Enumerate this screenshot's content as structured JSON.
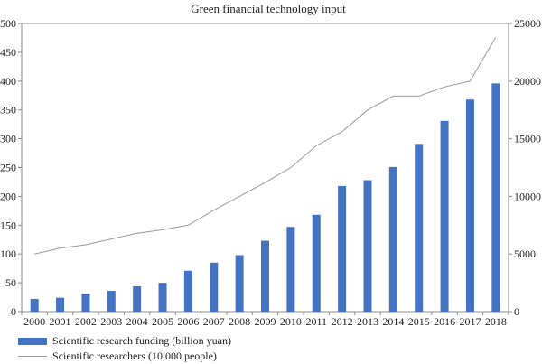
{
  "chart_data": {
    "type": "bar",
    "title": "Green financial technology input",
    "categories": [
      "2000",
      "2001",
      "2002",
      "2003",
      "2004",
      "2005",
      "2006",
      "2007",
      "2008",
      "2009",
      "2010",
      "2011",
      "2012",
      "2013",
      "2014",
      "2015",
      "2016",
      "2017",
      "2018"
    ],
    "series": [
      {
        "name": "Scientific research funding (billion yuan)",
        "type": "bar",
        "axis": "left",
        "color": "#4472c4",
        "values": [
          22,
          24,
          31,
          36,
          44,
          50,
          71,
          85,
          98,
          123,
          147,
          168,
          218,
          228,
          251,
          291,
          331,
          368,
          396
        ]
      },
      {
        "name": "Scientific researchers (10,000 people)",
        "type": "line",
        "axis": "right",
        "color": "#999999",
        "values": [
          5000,
          5500,
          5800,
          6300,
          6800,
          7100,
          7500,
          8800,
          10000,
          11200,
          12500,
          14400,
          15600,
          17500,
          18700,
          18700,
          19500,
          20000,
          23800
        ]
      }
    ],
    "y_left": {
      "min": 0,
      "max": 500,
      "ticks": [
        0,
        50,
        100,
        150,
        200,
        250,
        300,
        350,
        400,
        450,
        500
      ]
    },
    "y_right": {
      "min": 0,
      "max": 25000,
      "ticks": [
        0,
        5000,
        10000,
        15000,
        20000,
        25000
      ]
    },
    "grid": false,
    "legend_position": "bottom-left"
  }
}
